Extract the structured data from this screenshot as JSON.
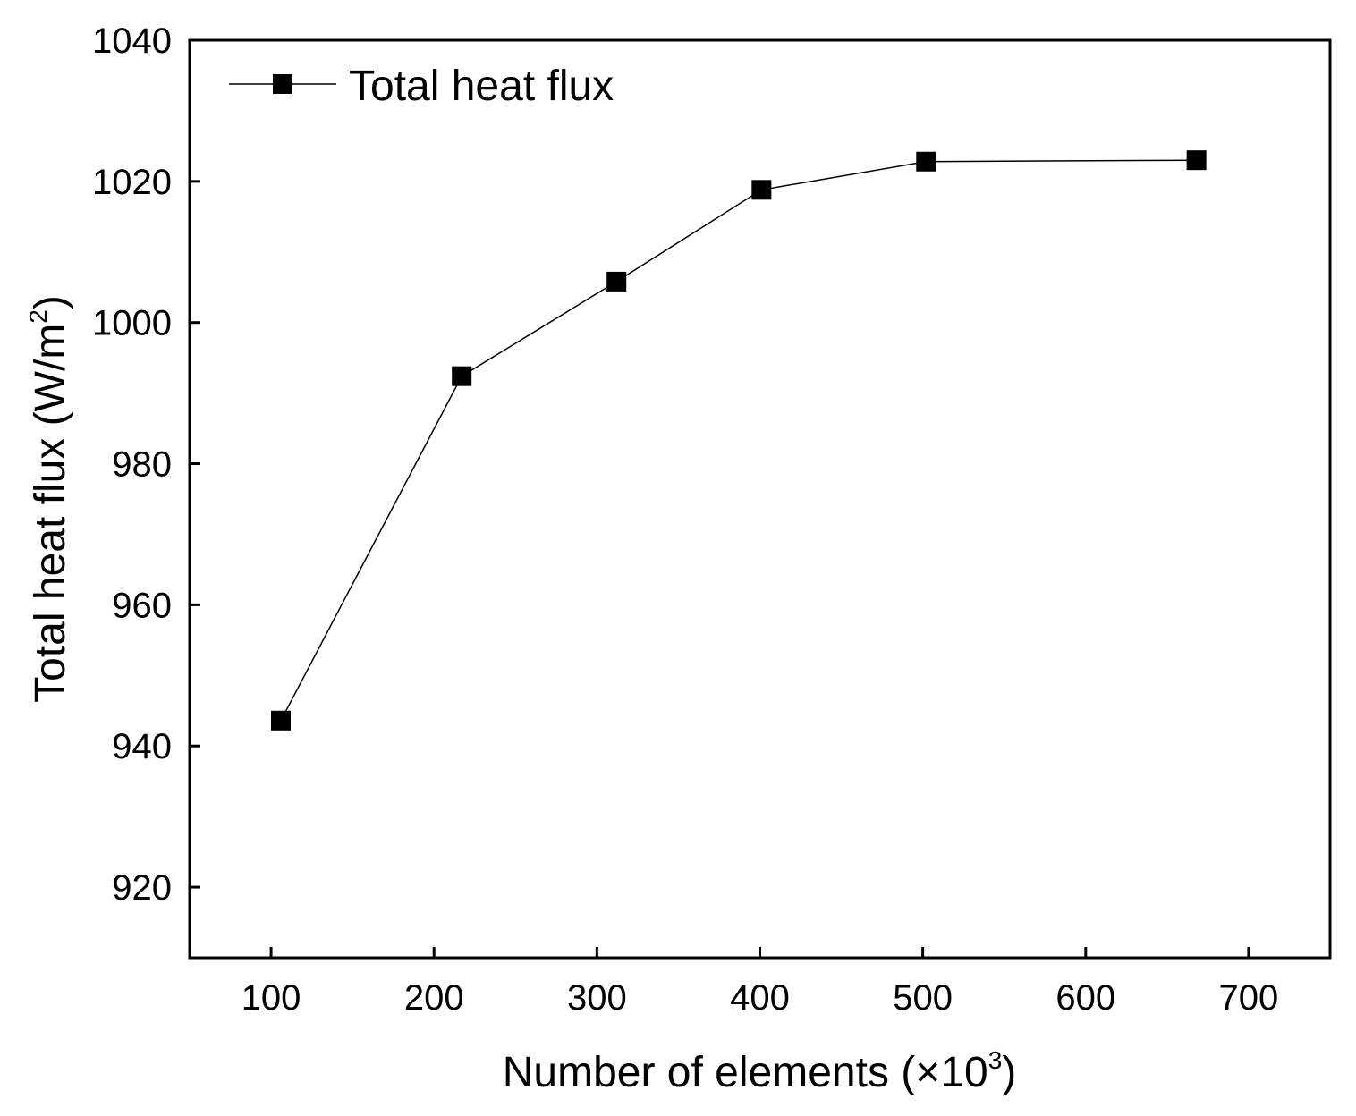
{
  "chart_data": {
    "type": "line",
    "title": "",
    "xlabel": "Number of elements (×10",
    "xlabel_sup": "3",
    "xlabel_close": ")",
    "ylabel": "Total heat flux (W/m",
    "ylabel_sup": "2",
    "ylabel_close": ")",
    "xlim": [
      50,
      750
    ],
    "ylim": [
      910,
      1040
    ],
    "xticks": [
      100,
      200,
      300,
      400,
      500,
      600,
      700
    ],
    "yticks": [
      920,
      940,
      960,
      980,
      1000,
      1020,
      1040
    ],
    "grid": false,
    "legend_position": "top-left",
    "series": [
      {
        "name": "Total heat flux",
        "marker": "square",
        "color": "#000000",
        "x": [
          106,
          217,
          312,
          401,
          502,
          668
        ],
        "y": [
          943.6,
          992.4,
          1005.8,
          1018.8,
          1022.8,
          1023.0
        ]
      }
    ]
  }
}
